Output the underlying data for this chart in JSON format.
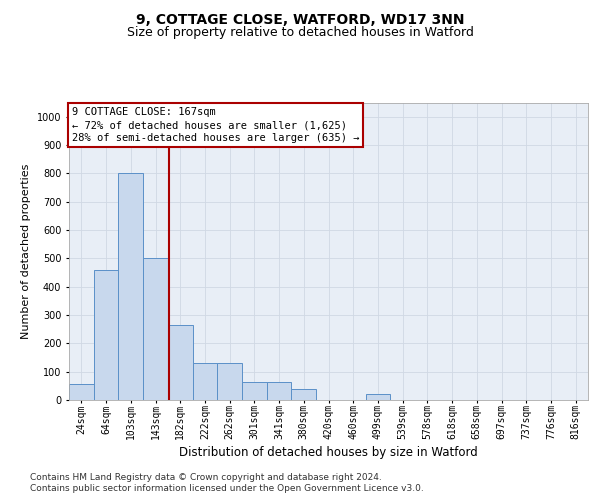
{
  "title1": "9, COTTAGE CLOSE, WATFORD, WD17 3NN",
  "title2": "Size of property relative to detached houses in Watford",
  "xlabel": "Distribution of detached houses by size in Watford",
  "ylabel": "Number of detached properties",
  "annotation_line1": "9 COTTAGE CLOSE: 167sqm",
  "annotation_line2": "← 72% of detached houses are smaller (1,625)",
  "annotation_line3": "28% of semi-detached houses are larger (635) →",
  "footnote1": "Contains HM Land Registry data © Crown copyright and database right 2024.",
  "footnote2": "Contains public sector information licensed under the Open Government Licence v3.0.",
  "bar_color": "#c8d8ed",
  "bar_edge_color": "#5b90c8",
  "vline_color": "#aa0000",
  "annotation_box_edgecolor": "#aa0000",
  "grid_color": "#d0d8e4",
  "plot_bg_color": "#e8eef6",
  "fig_bg_color": "#ffffff",
  "bin_labels": [
    "24sqm",
    "64sqm",
    "103sqm",
    "143sqm",
    "182sqm",
    "222sqm",
    "262sqm",
    "301sqm",
    "341sqm",
    "380sqm",
    "420sqm",
    "460sqm",
    "499sqm",
    "539sqm",
    "578sqm",
    "618sqm",
    "658sqm",
    "697sqm",
    "737sqm",
    "776sqm",
    "816sqm"
  ],
  "bar_heights": [
    55,
    460,
    800,
    500,
    265,
    130,
    130,
    65,
    65,
    40,
    0,
    0,
    20,
    0,
    0,
    0,
    0,
    0,
    0,
    0,
    0
  ],
  "ylim": [
    0,
    1050
  ],
  "yticks": [
    0,
    100,
    200,
    300,
    400,
    500,
    600,
    700,
    800,
    900,
    1000
  ],
  "vline_x_index": 3.55,
  "title1_fontsize": 10,
  "title2_fontsize": 9,
  "xlabel_fontsize": 8.5,
  "ylabel_fontsize": 8,
  "tick_fontsize": 7,
  "annotation_fontsize": 7.5,
  "footnote_fontsize": 6.5
}
